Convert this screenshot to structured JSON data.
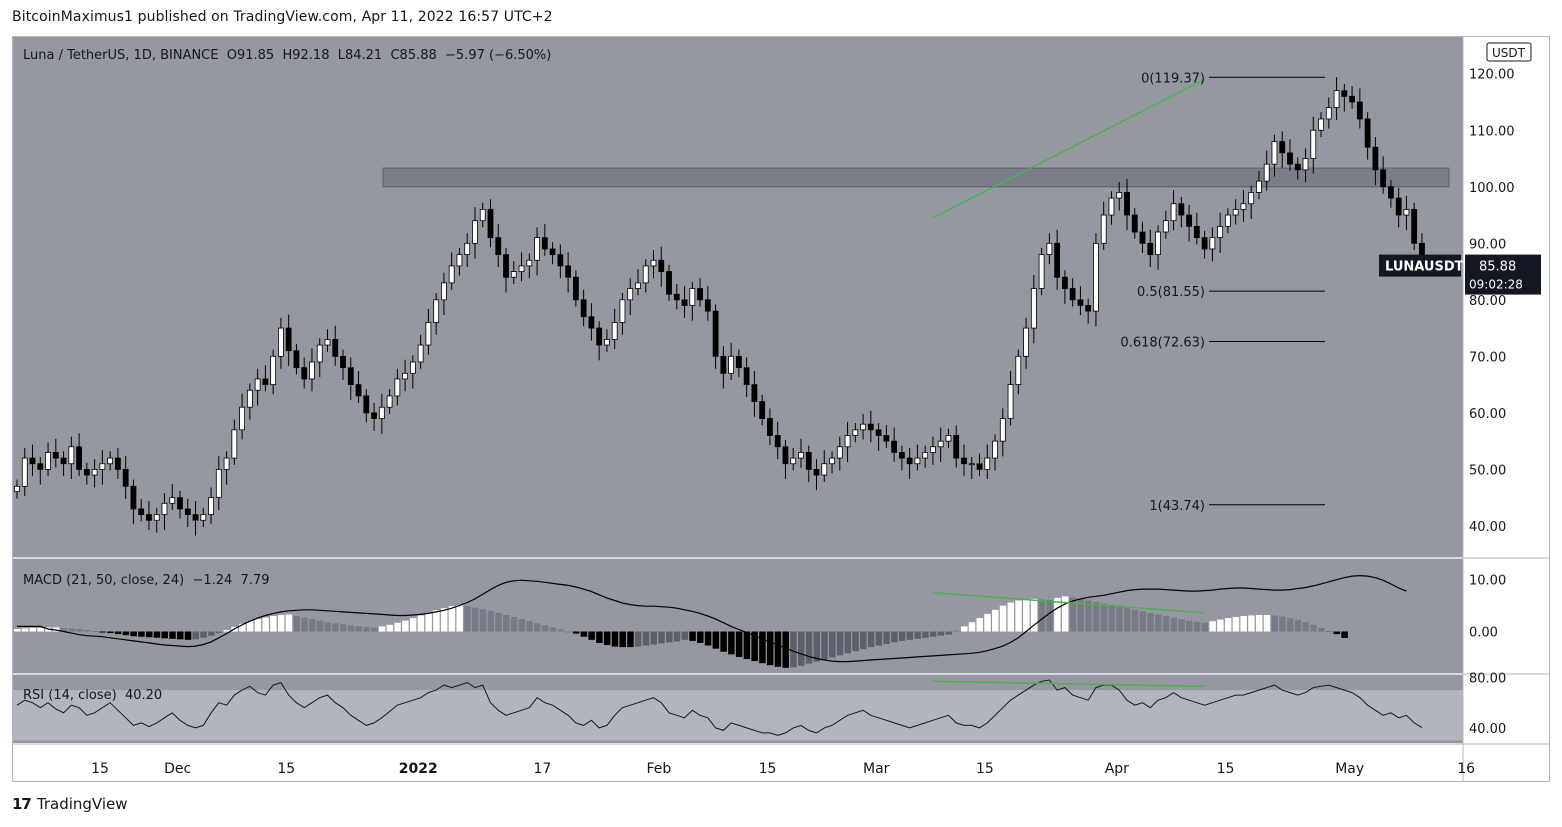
{
  "publish_line": "BitcoinMaximus1 published on TradingView.com, Apr 11, 2022 16:57 UTC+2",
  "footer_brand": "TradingView",
  "chart_data": {
    "type": "candlestick",
    "symbol_line": "Luna / TetherUS, 1D, BINANCE",
    "ohlc": {
      "o_label": "O",
      "o": "91.85",
      "h_label": "H",
      "h": "92.18",
      "l_label": "L",
      "l": "84.21",
      "c_label": "C",
      "c": "85.88",
      "change": "−5.97 (−6.50%)"
    },
    "currency": "USDT",
    "ticker_tag": "LUNAUSDT",
    "last_price": 85.88,
    "last_price_label": "85.88",
    "countdown": "09:02:28",
    "y_ticks": [
      "120.00",
      "110.00",
      "100.00",
      "90.00",
      "80.00",
      "70.00",
      "60.00",
      "50.00",
      "40.00"
    ],
    "y_range": [
      34.5,
      126.5
    ],
    "x_tick_labels": [
      {
        "label": "15",
        "day": 0,
        "bold": false
      },
      {
        "label": "Dec",
        "day": 10,
        "bold": false
      },
      {
        "label": "15",
        "day": 24,
        "bold": false
      },
      {
        "label": "2022",
        "day": 41,
        "bold": true
      },
      {
        "label": "17",
        "day": 57,
        "bold": false
      },
      {
        "label": "Feb",
        "day": 72,
        "bold": false
      },
      {
        "label": "15",
        "day": 86,
        "bold": false
      },
      {
        "label": "Mar",
        "day": 100,
        "bold": false
      },
      {
        "label": "15",
        "day": 114,
        "bold": false
      },
      {
        "label": "Apr",
        "day": 131,
        "bold": false
      },
      {
        "label": "15",
        "day": 145,
        "bold": false
      },
      {
        "label": "May",
        "day": 161,
        "bold": false
      },
      {
        "label": "16",
        "day": 176,
        "bold": false
      }
    ],
    "resistance_zone": [
      100.0,
      103.3
    ],
    "fib_levels": [
      {
        "label": "0(119.37)",
        "value": 119.37
      },
      {
        "label": "0.5(81.55)",
        "value": 81.55
      },
      {
        "label": "0.618(72.63)",
        "value": 72.63
      },
      {
        "label": "1(43.74)",
        "value": 43.74
      }
    ],
    "price_trendline": [
      {
        "day": 118,
        "value": 94.5
      },
      {
        "day": 153,
        "value": 119.0
      }
    ],
    "closes": [
      47,
      52,
      51,
      50,
      53,
      52,
      51,
      54,
      50,
      49,
      50,
      51,
      52,
      50,
      47,
      43,
      42,
      41,
      42,
      44,
      45,
      43,
      42,
      41,
      42,
      45,
      50,
      52,
      57,
      61,
      64,
      66,
      65,
      70,
      75,
      71,
      68,
      66,
      69,
      72,
      73,
      70,
      68,
      65,
      63,
      60,
      59,
      61,
      63,
      66,
      67,
      69,
      72,
      76,
      80,
      83,
      86,
      88,
      90,
      94,
      96,
      91,
      88,
      84,
      85,
      86,
      87,
      91,
      89,
      88,
      86,
      84,
      80,
      77,
      75,
      72,
      73,
      76,
      80,
      82,
      83,
      86,
      87,
      85,
      81,
      80,
      79,
      82,
      80,
      78,
      70,
      67,
      70,
      68,
      65,
      62,
      59,
      56,
      54,
      51,
      52,
      53,
      50,
      49,
      51,
      52,
      54,
      56,
      57,
      58,
      57,
      56,
      55,
      53,
      52,
      51,
      52,
      53,
      54,
      55,
      56,
      52,
      51,
      51,
      50,
      52,
      55,
      59,
      65,
      70,
      75,
      82,
      88,
      90,
      84,
      82,
      80,
      79,
      78,
      90,
      95,
      98,
      99,
      95,
      92,
      90,
      88,
      92,
      94,
      97,
      95,
      93,
      91,
      89,
      91,
      93,
      95,
      96,
      97,
      99,
      101,
      104,
      108,
      106,
      104,
      103,
      105,
      110,
      112,
      114,
      117,
      116,
      115,
      112,
      107,
      103,
      100,
      98,
      95,
      96,
      90,
      85.88
    ]
  },
  "macd": {
    "label": "MACD",
    "params": "(21, 50, close, 24)",
    "value1": "−1.24",
    "value2": "7.79",
    "y_ticks": [
      "10.00",
      "0.00"
    ],
    "y_range": [
      -8,
      14
    ],
    "line": [
      1,
      1,
      1,
      1,
      0.5,
      0.3,
      0,
      -0.3,
      -0.6,
      -0.8,
      -0.9,
      -1,
      -1.2,
      -1.4,
      -1.6,
      -1.8,
      -2,
      -2.2,
      -2.4,
      -2.6,
      -2.7,
      -2.8,
      -2.9,
      -2.8,
      -2.5,
      -2,
      -1.2,
      -0.4,
      0.5,
      1.3,
      2,
      2.6,
      3.1,
      3.5,
      3.8,
      4,
      4.1,
      4.2,
      4.2,
      4.1,
      4,
      3.9,
      3.8,
      3.7,
      3.6,
      3.5,
      3.4,
      3.3,
      3.2,
      3.1,
      3.1,
      3.2,
      3.3,
      3.5,
      3.8,
      4.1,
      4.5,
      5,
      5.6,
      6.3,
      7.2,
      8.1,
      8.9,
      9.5,
      9.8,
      9.9,
      9.8,
      9.7,
      9.5,
      9.3,
      9.1,
      8.9,
      8.6,
      8.2,
      7.7,
      7.1,
      6.5,
      6,
      5.5,
      5.2,
      5,
      4.9,
      4.9,
      4.8,
      4.7,
      4.5,
      4.2,
      3.9,
      3.5,
      3,
      2.4,
      1.7,
      1,
      0.4,
      -0.2,
      -0.8,
      -1.4,
      -2,
      -2.6,
      -3.2,
      -3.8,
      -4.3,
      -4.8,
      -5.2,
      -5.5,
      -5.7,
      -5.8,
      -5.8,
      -5.7,
      -5.6,
      -5.5,
      -5.4,
      -5.3,
      -5.2,
      -5.1,
      -5,
      -4.9,
      -4.8,
      -4.7,
      -4.6,
      -4.5,
      -4.4,
      -4.3,
      -4.2,
      -4,
      -3.7,
      -3.3,
      -2.8,
      -2.1,
      -1.2,
      0,
      1.2,
      2.4,
      3.5,
      4.5,
      5.3,
      5.9,
      6.3,
      6.6,
      6.8,
      7,
      7.3,
      7.6,
      7.9,
      8.1,
      8.2,
      8.2,
      8.2,
      8.1,
      8,
      7.9,
      7.8,
      7.8,
      7.9,
      8,
      8.2,
      8.3,
      8.4,
      8.4,
      8.3,
      8.2,
      8.1,
      8,
      8,
      8.1,
      8.3,
      8.5,
      8.8,
      9.2,
      9.6,
      10,
      10.4,
      10.7,
      10.8,
      10.7,
      10.4,
      9.9,
      9.2,
      8.4,
      7.79
    ],
    "hist": [
      0.5,
      0.6,
      0.7,
      0.7,
      0.8,
      0.8,
      0.7,
      0.6,
      0.5,
      0.3,
      0.1,
      -0.1,
      -0.3,
      -0.5,
      -0.7,
      -0.9,
      -1,
      -1.1,
      -1.2,
      -1.3,
      -1.4,
      -1.5,
      -1.6,
      -1.5,
      -1.2,
      -0.8,
      -0.3,
      0.3,
      0.9,
      1.5,
      2,
      2.4,
      2.7,
      3,
      3.2,
      3.3,
      3,
      2.7,
      2.4,
      2.1,
      1.8,
      1.6,
      1.4,
      1.2,
      1,
      0.9,
      0.8,
      1,
      1.3,
      1.7,
      2.1,
      2.6,
      3.1,
      3.6,
      4.1,
      4.5,
      4.9,
      5.1,
      4.9,
      4.6,
      4.3,
      4,
      3.6,
      3.2,
      2.8,
      2.4,
      2,
      1.6,
      1.2,
      0.8,
      0.4,
      0,
      -0.4,
      -1,
      -1.6,
      -2.2,
      -2.6,
      -2.9,
      -3,
      -3,
      -2.9,
      -2.7,
      -2.5,
      -2.3,
      -2.1,
      -1.9,
      -1.6,
      -1.8,
      -2.2,
      -2.7,
      -3.3,
      -3.9,
      -4.4,
      -4.9,
      -5.3,
      -5.7,
      -6.1,
      -6.5,
      -6.8,
      -7,
      -6.9,
      -6.6,
      -6.2,
      -5.8,
      -5.4,
      -5,
      -4.6,
      -4.2,
      -3.8,
      -3.4,
      -3,
      -2.7,
      -2.4,
      -2.1,
      -1.8,
      -1.6,
      -1.4,
      -1.2,
      -1,
      -0.8,
      -0.6,
      0.2,
      1,
      1.8,
      2.6,
      3.4,
      4.2,
      5,
      5.6,
      6,
      6.2,
      6.3,
      6.2,
      6.1,
      6.5,
      6.8,
      6.6,
      6.3,
      6,
      5.7,
      5.4,
      5.1,
      4.8,
      4.5,
      4.2,
      3.9,
      3.6,
      3.3,
      3,
      2.7,
      2.4,
      2.1,
      1.9,
      1.7,
      2,
      2.3,
      2.6,
      2.8,
      3,
      3.1,
      3.2,
      3.2,
      3.1,
      2.9,
      2.6,
      2.2,
      1.8,
      1.3,
      0.7,
      0.1,
      -0.5,
      -1.24
    ],
    "trendline": [
      {
        "day": 118,
        "value": 7.5
      },
      {
        "day": 153,
        "value": 3.6
      }
    ]
  },
  "rsi": {
    "label": "RSI",
    "params": "(14, close)",
    "value": "40.20",
    "y_ticks": [
      "80.00",
      "40.00"
    ],
    "y_range": [
      28,
      82
    ],
    "band": [
      30,
      70
    ],
    "values": [
      58,
      62,
      60,
      56,
      60,
      55,
      52,
      58,
      56,
      50,
      52,
      56,
      60,
      54,
      48,
      42,
      44,
      41,
      44,
      48,
      52,
      46,
      42,
      40,
      42,
      52,
      60,
      58,
      66,
      70,
      73,
      68,
      66,
      74,
      76,
      66,
      60,
      56,
      60,
      64,
      66,
      60,
      56,
      50,
      46,
      42,
      44,
      48,
      53,
      58,
      60,
      62,
      64,
      68,
      70,
      74,
      72,
      74,
      76,
      72,
      74,
      60,
      54,
      50,
      52,
      54,
      56,
      64,
      60,
      58,
      54,
      50,
      44,
      42,
      46,
      40,
      42,
      50,
      56,
      58,
      60,
      62,
      64,
      60,
      52,
      50,
      48,
      54,
      50,
      48,
      40,
      38,
      44,
      42,
      40,
      38,
      36,
      36,
      34,
      36,
      40,
      42,
      38,
      36,
      40,
      42,
      46,
      50,
      52,
      54,
      50,
      48,
      46,
      44,
      42,
      40,
      42,
      44,
      46,
      48,
      50,
      44,
      42,
      42,
      40,
      44,
      50,
      56,
      62,
      66,
      70,
      74,
      77,
      78,
      70,
      72,
      66,
      64,
      62,
      72,
      74,
      74,
      70,
      62,
      58,
      60,
      56,
      62,
      64,
      68,
      64,
      62,
      60,
      58,
      60,
      62,
      64,
      66,
      66,
      68,
      70,
      72,
      74,
      70,
      68,
      66,
      68,
      72,
      73,
      74,
      72,
      70,
      68,
      64,
      58,
      54,
      50,
      52,
      48,
      50,
      44,
      40.2
    ],
    "trendline": [
      {
        "day": 118,
        "value": 77
      },
      {
        "day": 153,
        "value": 73
      }
    ]
  }
}
